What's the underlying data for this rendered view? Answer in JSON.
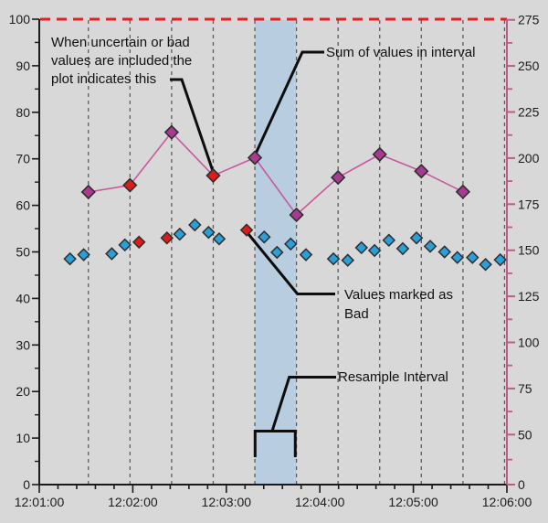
{
  "colors": {
    "background": "#d8d8d8",
    "axis": "#1a1a1a",
    "gridline": "#5c5c5c",
    "band_fill": "#b9cde1",
    "limit_line": "#e41f1f",
    "sum_line": "#cb569e",
    "sum_marker_good": "#a83a92",
    "marker_bad": "#dc1c1c",
    "scatter_marker_good": "#29a0d8",
    "marker_outline": "#2e2e2e",
    "right_axis": "#bf5a8a",
    "annotation_line": "#0d0d0d",
    "annotation_text": "#111111"
  },
  "chart_data": {
    "type": "line+scatter",
    "title": "",
    "x_axis": {
      "tick_labels": [
        "12:01:00",
        "12:02:00",
        "12:03:00",
        "12:04:00",
        "12:05:00",
        "12:06:00"
      ],
      "major_tick_seconds": 60,
      "minor_tick_seconds": 12,
      "range_seconds": [
        0,
        300
      ]
    },
    "y_axis_left": {
      "min": 0,
      "max": 100,
      "labels": [
        100,
        90,
        80,
        70,
        60,
        50,
        40,
        30,
        20,
        10,
        0
      ],
      "minor_step": 5
    },
    "y_axis_right": {
      "labels": [
        275,
        250,
        225,
        200,
        175,
        150,
        125,
        100,
        75,
        50,
        0
      ],
      "major_step": 25
    },
    "limit_line": {
      "value_left_axis": 100,
      "style": "dashed"
    },
    "resample_gridlines_seconds": [
      31.5,
      58.2,
      84.9,
      111.6,
      138.3,
      165.0,
      191.7,
      218.4,
      245.1,
      271.8,
      298.5
    ],
    "highlight_band_seconds": [
      138.3,
      165.0
    ],
    "series": [
      {
        "name": "sum-of-values-in-interval",
        "axis": "right",
        "marker": "diamond",
        "points": [
          {
            "t": 31.5,
            "v": 181.6,
            "bad": false
          },
          {
            "t": 58.2,
            "v": 185.3,
            "bad": true
          },
          {
            "t": 84.9,
            "v": 214.0,
            "bad": false
          },
          {
            "t": 111.6,
            "v": 190.5,
            "bad": true
          },
          {
            "t": 138.3,
            "v": 200.2,
            "bad": false
          },
          {
            "t": 165.0,
            "v": 169.2,
            "bad": false
          },
          {
            "t": 191.7,
            "v": 189.5,
            "bad": false
          },
          {
            "t": 218.4,
            "v": 202.0,
            "bad": false
          },
          {
            "t": 245.1,
            "v": 192.9,
            "bad": false
          },
          {
            "t": 271.8,
            "v": 181.7,
            "bad": false
          }
        ]
      },
      {
        "name": "raw-values",
        "axis": "left",
        "marker": "diamond",
        "points": [
          {
            "t": 19.7,
            "v": 48.5,
            "bad": false
          },
          {
            "t": 28.5,
            "v": 49.4,
            "bad": false
          },
          {
            "t": 46.5,
            "v": 49.6,
            "bad": false
          },
          {
            "t": 54.9,
            "v": 51.5,
            "bad": false
          },
          {
            "t": 64.0,
            "v": 52.1,
            "bad": true
          },
          {
            "t": 81.9,
            "v": 53.0,
            "bad": true
          },
          {
            "t": 90.1,
            "v": 53.8,
            "bad": false
          },
          {
            "t": 99.8,
            "v": 55.8,
            "bad": false
          },
          {
            "t": 108.6,
            "v": 54.2,
            "bad": false
          },
          {
            "t": 115.4,
            "v": 52.8,
            "bad": false
          },
          {
            "t": 133.0,
            "v": 54.7,
            "bad": true
          },
          {
            "t": 144.3,
            "v": 53.2,
            "bad": false
          },
          {
            "t": 152.5,
            "v": 49.9,
            "bad": false
          },
          {
            "t": 161.3,
            "v": 51.7,
            "bad": false
          },
          {
            "t": 171.1,
            "v": 49.4,
            "bad": false
          },
          {
            "t": 188.7,
            "v": 48.5,
            "bad": false
          },
          {
            "t": 197.9,
            "v": 48.2,
            "bad": false
          },
          {
            "t": 206.7,
            "v": 50.9,
            "bad": false
          },
          {
            "t": 215.1,
            "v": 50.3,
            "bad": false
          },
          {
            "t": 224.3,
            "v": 52.5,
            "bad": false
          },
          {
            "t": 233.2,
            "v": 50.7,
            "bad": false
          },
          {
            "t": 242.0,
            "v": 53.0,
            "bad": false
          },
          {
            "t": 250.8,
            "v": 51.2,
            "bad": false
          },
          {
            "t": 260.0,
            "v": 50.0,
            "bad": false
          },
          {
            "t": 268.2,
            "v": 48.8,
            "bad": false
          },
          {
            "t": 277.9,
            "v": 48.8,
            "bad": false
          },
          {
            "t": 286.3,
            "v": 47.3,
            "bad": false
          },
          {
            "t": 295.7,
            "v": 48.3,
            "bad": false
          }
        ]
      }
    ],
    "annotations": [
      {
        "id": "uncertain",
        "lines": [
          "When uncertain or bad",
          "values are included the",
          "plot indicates this"
        ]
      },
      {
        "id": "sum",
        "lines": [
          "Sum of values in interval"
        ]
      },
      {
        "id": "bad",
        "lines": [
          "Values marked as",
          "Bad"
        ]
      },
      {
        "id": "resample",
        "lines": [
          "Resample Interval"
        ]
      }
    ],
    "legend_position": "none",
    "grid": "vertical-dashed"
  }
}
